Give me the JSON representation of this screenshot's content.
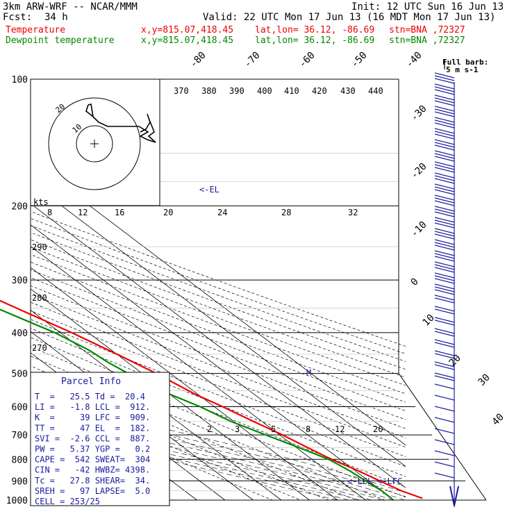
{
  "header": {
    "model": "3km ARW-WRF -- NCAR/MMM",
    "init": "Init: 12 UTC Sun 16 Jun 13",
    "fcst_label": "Fcst:",
    "fcst_value": "34 h",
    "valid": "Valid: 22 UTC Mon 17 Jun 13 (16 MDT Mon 17 Jun 13)",
    "temp_label": "Temperature",
    "dew_label": "Dewpoint temperature",
    "xy": "x,y=815.07,418.45",
    "latlon": "lat,lon= 36.12, -86.69",
    "stn": "stn=BNA ,72327"
  },
  "colors": {
    "temperature": "#ee0000",
    "dewpoint": "#008800",
    "barbs": "#1a1aa0",
    "parcel": "#1a1aa0"
  },
  "chart_data": {
    "type": "line",
    "pressure_levels": [
      "100",
      "200",
      "300",
      "400",
      "500",
      "600",
      "700",
      "800",
      "900",
      "1000"
    ],
    "series": [
      {
        "name": "Temperature",
        "color": "#ee0000",
        "points": [
          [
            100,
            -65
          ],
          [
            120,
            -61
          ],
          [
            145,
            -58
          ],
          [
            170,
            -57
          ],
          [
            185,
            -56
          ],
          [
            200,
            -51
          ],
          [
            250,
            -42
          ],
          [
            300,
            -33
          ],
          [
            350,
            -24
          ],
          [
            400,
            -16
          ],
          [
            450,
            -10
          ],
          [
            500,
            -5
          ],
          [
            560,
            -1
          ],
          [
            600,
            3
          ],
          [
            650,
            7
          ],
          [
            700,
            11
          ],
          [
            750,
            14
          ],
          [
            800,
            17
          ],
          [
            850,
            21
          ],
          [
            900,
            24
          ],
          [
            950,
            27
          ],
          [
            990,
            31
          ]
        ]
      },
      {
        "name": "Dewpoint temperature",
        "color": "#008800",
        "points": [
          [
            100,
            -75
          ],
          [
            120,
            -76
          ],
          [
            145,
            -73
          ],
          [
            165,
            -72
          ],
          [
            185,
            -73
          ],
          [
            200,
            -64
          ],
          [
            250,
            -55
          ],
          [
            300,
            -42
          ],
          [
            350,
            -31
          ],
          [
            400,
            -22
          ],
          [
            440,
            -18
          ],
          [
            470,
            -17
          ],
          [
            500,
            -15
          ],
          [
            560,
            -10
          ],
          [
            600,
            -5
          ],
          [
            650,
            -1
          ],
          [
            700,
            5
          ],
          [
            760,
            12
          ],
          [
            800,
            16
          ],
          [
            850,
            18
          ],
          [
            900,
            19
          ],
          [
            950,
            20
          ],
          [
            990,
            20
          ]
        ]
      }
    ],
    "dry_adiabat_labels": [
      "370",
      "380",
      "390",
      "400",
      "410",
      "420",
      "430",
      "440",
      "290",
      "280",
      "270"
    ],
    "isotherm_labels": [
      "-80",
      "-70",
      "-60",
      "-50",
      "-40",
      "-30",
      "-20",
      "-10",
      "0",
      "10",
      "20",
      "30",
      "40"
    ],
    "mixing_ratio_top_labels": [
      "8",
      "12",
      "16",
      "20",
      "24",
      "28",
      "32"
    ],
    "mixing_ratio_low_labels": [
      "2",
      "3",
      "5",
      "8",
      "12",
      "20"
    ],
    "hodograph": {
      "units": "kts",
      "ring_labels": [
        "10",
        "20"
      ]
    },
    "barb_key": {
      "label": "Full barb:",
      "value": "5 m s-1"
    },
    "markers": {
      "el": "<-EL",
      "lcl": "<-LCL",
      "lfc": "<-LFC",
      "m": "M"
    }
  },
  "parcel_info": {
    "title": "Parcel Info",
    "rows": [
      "T  =   25.5 Td =  20.4",
      "LI =   -1.8 LCL =  912.",
      "K  =     39 LFC =  909.",
      "TT =     47 EL  =  182.",
      "SVI =  -2.6 CCL =  887.",
      "PW =   5.37 YGP =   0.2",
      "CAPE =  542 SWEAT=  304",
      "CIN =   -42 HWBZ= 4398.",
      "Tc =   27.8 SHEAR=  34.",
      "SREH =   97 LAPSE=  5.0",
      "CELL = 253/25"
    ]
  }
}
